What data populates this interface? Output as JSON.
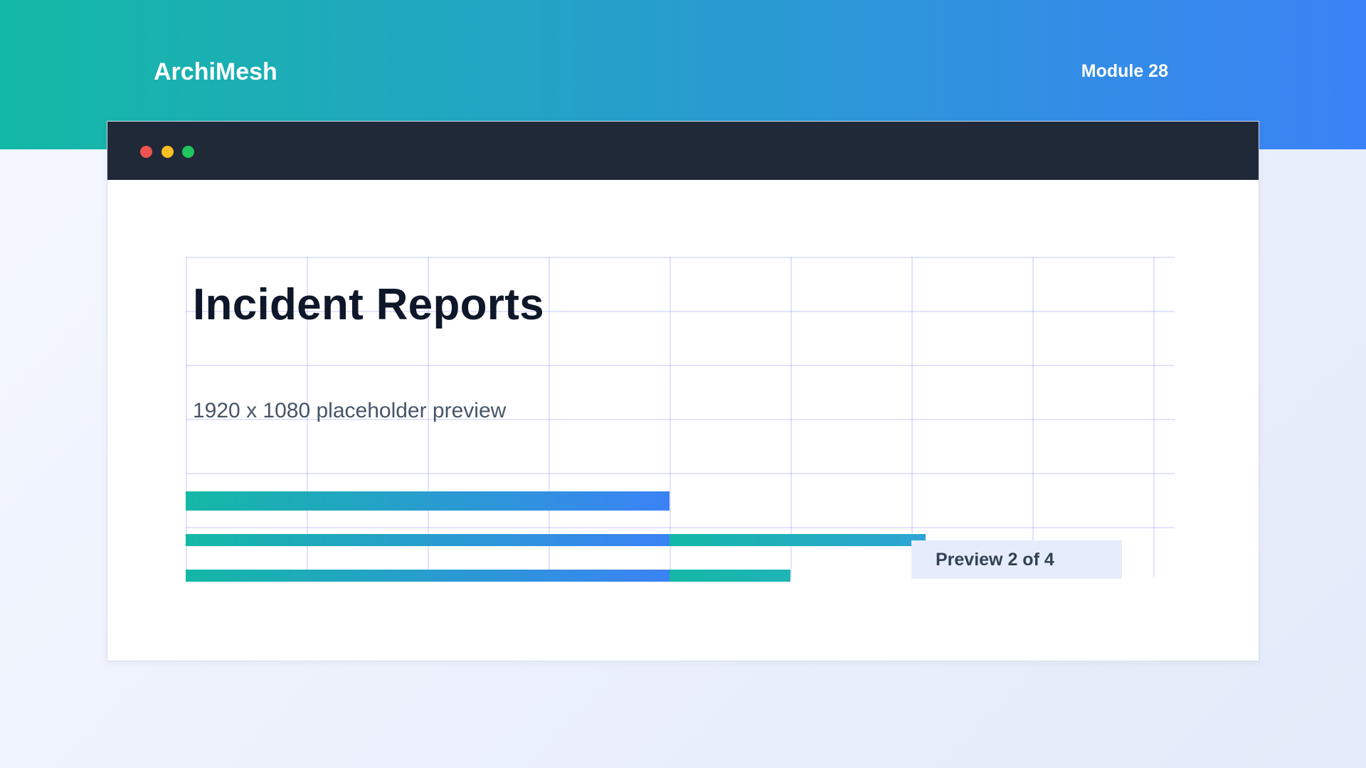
{
  "header": {
    "brand": "ArchiMesh",
    "module": "Module 28"
  },
  "window": {
    "title": "Incident Reports",
    "subtitle": "1920 x 1080 placeholder preview",
    "badge": "Preview 2 of 4"
  },
  "colors": {
    "accent_start": "#14b8a6",
    "accent_end": "#3b82f6",
    "titlebar": "#1f2937",
    "dot_red": "#ef5350",
    "dot_yellow": "#fbbf24",
    "dot_green": "#22c55e"
  }
}
